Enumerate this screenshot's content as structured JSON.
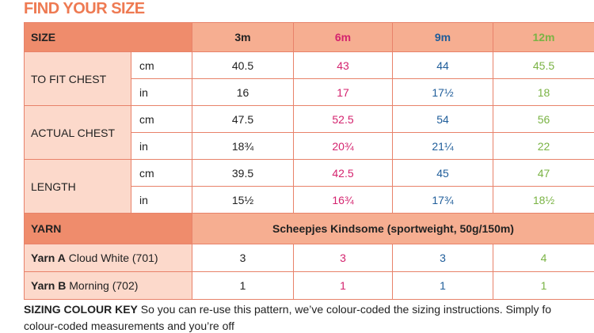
{
  "title": "FIND YOUR SIZE",
  "table": {
    "header": [
      "SIZE",
      "3m",
      "6m",
      "9m",
      "12m"
    ],
    "measurements": [
      {
        "label": "TO FIT CHEST",
        "rows": [
          {
            "unit": "cm",
            "values": [
              "40.5",
              "43",
              "44",
              "45.5"
            ]
          },
          {
            "unit": "in",
            "values": [
              "16",
              "17",
              "17½",
              "18"
            ]
          }
        ]
      },
      {
        "label": "ACTUAL CHEST",
        "rows": [
          {
            "unit": "cm",
            "values": [
              "47.5",
              "52.5",
              "54",
              "56"
            ]
          },
          {
            "unit": "in",
            "values": [
              "18¾",
              "20¾",
              "21¼",
              "22"
            ]
          }
        ]
      },
      {
        "label": "LENGTH",
        "rows": [
          {
            "unit": "cm",
            "values": [
              "39.5",
              "42.5",
              "45",
              "47"
            ]
          },
          {
            "unit": "in",
            "values": [
              "15½",
              "16¾",
              "17¾",
              "18½"
            ]
          }
        ]
      }
    ],
    "yarn": {
      "label": "YARN",
      "value": "Scheepjes Kindsome (sportweight, 50g/150m)",
      "rows": [
        {
          "name": "Yarn A",
          "shade": "Cloud White (701)",
          "values": [
            "3",
            "3",
            "3",
            "4"
          ]
        },
        {
          "name": "Yarn B",
          "shade": "Morning (702)",
          "values": [
            "1",
            "1",
            "1",
            "1"
          ]
        }
      ]
    }
  },
  "footer": {
    "heading": "SIZING COLOUR KEY",
    "text": "So you can re-use this pattern, we’ve colour-coded the sizing instructions. Simply fo",
    "text2": "colour-coded measurements and you’re off"
  }
}
